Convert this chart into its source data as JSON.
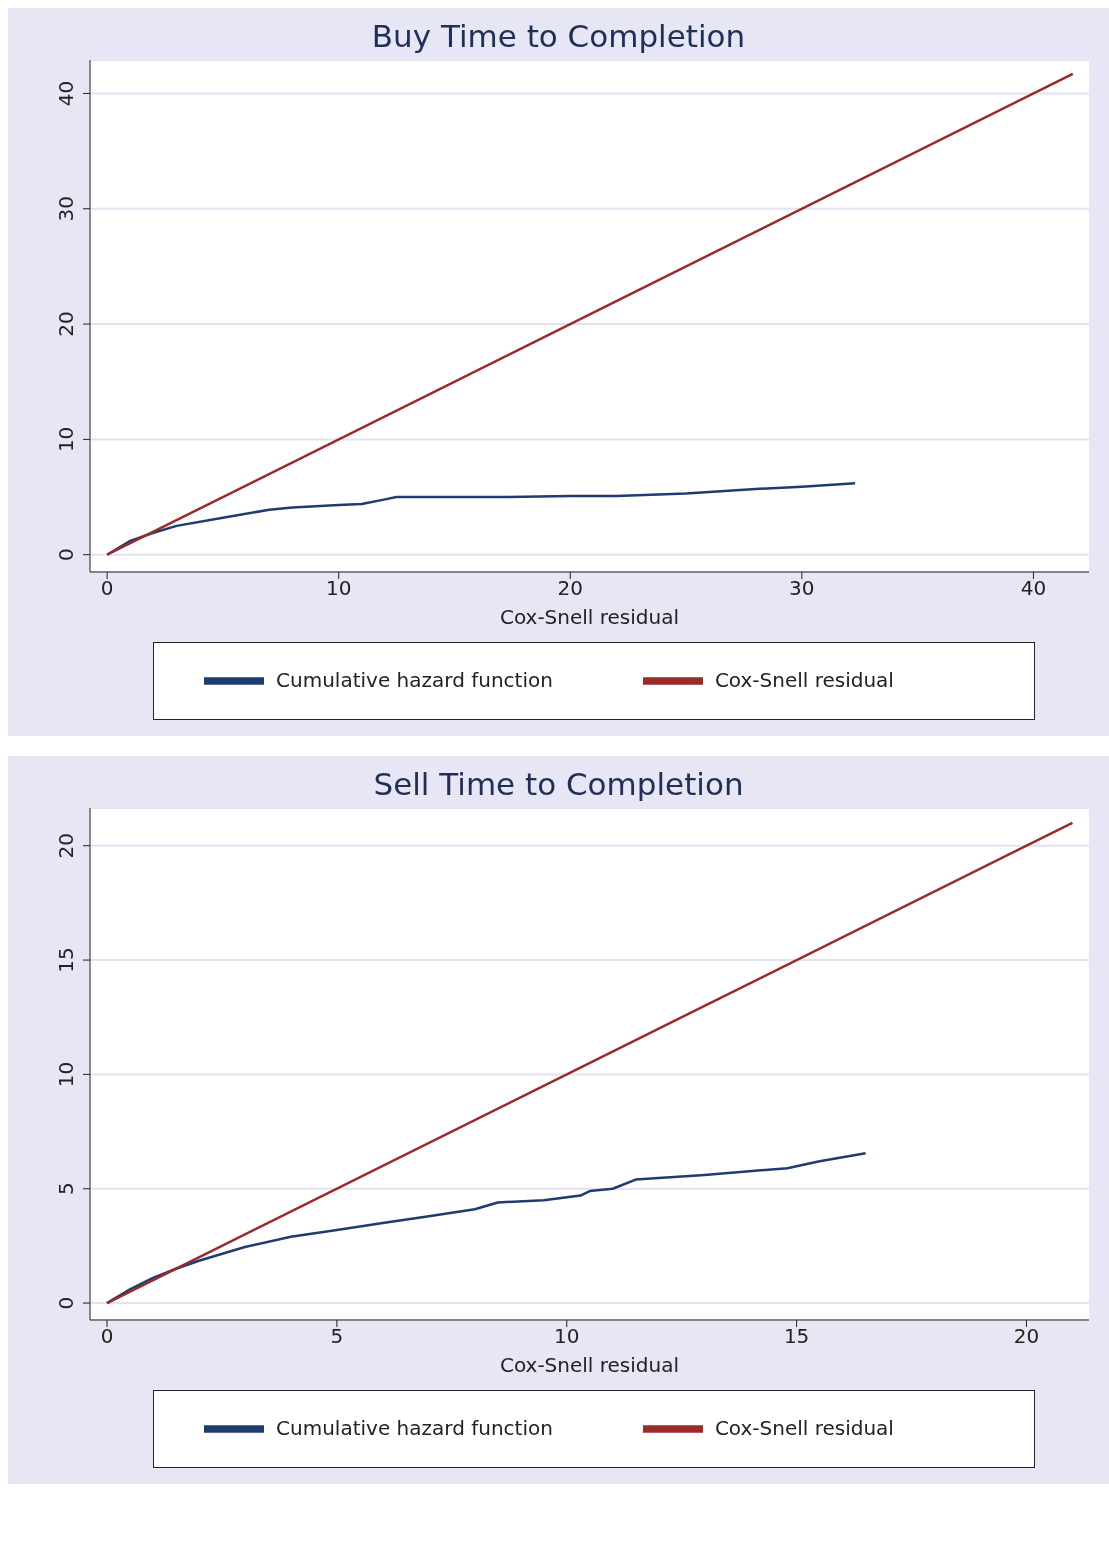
{
  "chart_data": [
    {
      "type": "line",
      "title": "Buy Time to Completion",
      "xlabel": "Cox-Snell residual",
      "xlim": [
        -0.74,
        42.4
      ],
      "ylim": [
        -1.5,
        42.9
      ],
      "xticks": [
        0,
        10,
        20,
        30,
        40
      ],
      "yticks": [
        0,
        10,
        20,
        30,
        40
      ],
      "grid": "y",
      "legend": "bottom",
      "marker": "none",
      "line_style": "solid",
      "series": [
        {
          "name": "Cumulative hazard function",
          "color": "#1f3c6e",
          "x": [
            0,
            1,
            2,
            3,
            5,
            7,
            8,
            10,
            11,
            12,
            12.5,
            17,
            20,
            22,
            25,
            28,
            30,
            32.3
          ],
          "values": [
            0,
            1.2,
            1.9,
            2.5,
            3.2,
            3.9,
            4.1,
            4.3,
            4.4,
            4.8,
            5.0,
            5.0,
            5.1,
            5.1,
            5.3,
            5.7,
            5.9,
            6.2
          ]
        },
        {
          "name": "Cox-Snell residual",
          "color": "#9b2a2a",
          "x": [
            0,
            41.7
          ],
          "values": [
            0,
            41.7
          ]
        }
      ]
    },
    {
      "type": "line",
      "title": "Sell Time to Completion",
      "xlabel": "Cox-Snell residual",
      "xlim": [
        -0.37,
        21.36
      ],
      "ylim": [
        -0.74,
        21.65
      ],
      "xticks": [
        0,
        5,
        10,
        15,
        20
      ],
      "yticks": [
        0,
        5,
        10,
        15,
        20
      ],
      "grid": "y",
      "legend": "bottom",
      "marker": "none",
      "line_style": "solid",
      "series": [
        {
          "name": "Cumulative hazard function",
          "color": "#1f3c6e",
          "x": [
            0,
            0.5,
            1,
            1.5,
            2,
            3,
            4,
            5,
            6,
            7,
            8,
            8.5,
            9.5,
            10.3,
            10.5,
            11,
            11.5,
            13,
            14.8,
            15.5,
            16.5
          ],
          "values": [
            0,
            0.6,
            1.1,
            1.5,
            1.85,
            2.45,
            2.9,
            3.2,
            3.5,
            3.8,
            4.1,
            4.4,
            4.5,
            4.7,
            4.9,
            5.0,
            5.4,
            5.6,
            5.9,
            6.2,
            6.55
          ]
        },
        {
          "name": "Cox-Snell residual",
          "color": "#9b2a2a",
          "x": [
            0,
            21
          ],
          "values": [
            0,
            21
          ]
        }
      ]
    }
  ]
}
